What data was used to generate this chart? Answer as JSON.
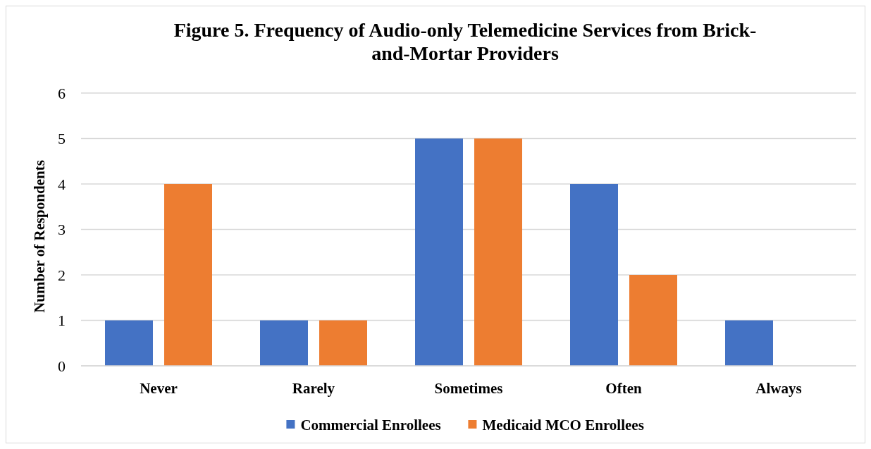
{
  "chart_data": {
    "type": "bar",
    "title": "Figure 5. Frequency of Audio-only Telemedicine Services from Brick-\nand-Mortar Providers",
    "ylabel": "Number of Respondents",
    "categories": [
      "Never",
      "Rarely",
      "Sometimes",
      "Often",
      "Always"
    ],
    "series": [
      {
        "name": "Commercial Enrollees",
        "color": "#4472c4",
        "values": [
          1,
          1,
          5,
          4,
          1
        ]
      },
      {
        "name": "Medicaid MCO Enrollees",
        "color": "#ed7d31",
        "values": [
          4,
          1,
          5,
          2,
          0
        ]
      }
    ],
    "ylim": [
      0,
      6
    ],
    "yticks": [
      0,
      1,
      2,
      3,
      4,
      5,
      6
    ],
    "grid": "y",
    "legend": "bottom"
  }
}
